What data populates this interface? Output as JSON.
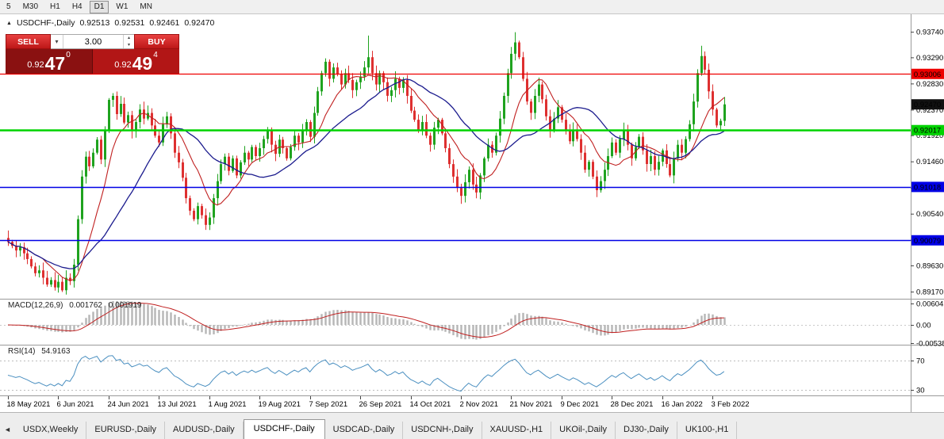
{
  "toolbar": {
    "periods": [
      "5",
      "M30",
      "H1",
      "H4",
      "D1",
      "W1",
      "MN"
    ],
    "active_period": "D1"
  },
  "chart": {
    "marker_icon": "▲",
    "symbol_title": "USDCHF-,Daily",
    "ohlc": {
      "open": "0.92513",
      "high": "0.92531",
      "low": "0.92461",
      "close": "0.92470"
    }
  },
  "trade": {
    "sell_label": "SELL",
    "buy_label": "BUY",
    "volume": "3.00",
    "volume_dropdown_icon": "▾",
    "spin_up_icon": "▴",
    "spin_down_icon": "▾",
    "sell_price": {
      "base": "0.92",
      "big": "47",
      "sup": "0"
    },
    "buy_price": {
      "base": "0.92",
      "big": "49",
      "sup": "4"
    }
  },
  "chart_data": {
    "type": "candlestick",
    "title": "USDCHF-,Daily",
    "first_open": 0.9012,
    "candles_per_tick": 13,
    "x_axis_dates": [
      "18 May 2021",
      "6 Jun 2021",
      "24 Jun 2021",
      "13 Jul 2021",
      "1 Aug 2021",
      "19 Aug 2021",
      "7 Sep 2021",
      "26 Sep 2021",
      "14 Oct 2021",
      "2 Nov 2021",
      "21 Nov 2021",
      "9 Dec 2021",
      "28 Dec 2021",
      "16 Jan 2022",
      "3 Feb 2022"
    ],
    "price_ticks": [
      "0.93740",
      "0.93290",
      "0.92830",
      "0.92370",
      "0.91920",
      "0.91460",
      "0.91000",
      "0.90540",
      "0.90080",
      "0.89630",
      "0.89170"
    ],
    "hlines": [
      {
        "price": 0.93006,
        "label": "0.93006",
        "color": "#ee0000",
        "width": 1.2
      },
      {
        "price": 0.92017,
        "label": "0.92017",
        "color": "#00d300",
        "width": 2.5
      },
      {
        "price": 0.91018,
        "label": "0.91018",
        "color": "#0000e6",
        "width": 1.5
      },
      {
        "price": 0.90079,
        "label": "0.90079",
        "color": "#0000e6",
        "width": 1.5
      }
    ],
    "current_price": {
      "value": 0.9247,
      "label": "0.92470",
      "color": "#111111"
    },
    "closes": [
      0.9005,
      0.8998,
      0.899,
      0.8996,
      0.8985,
      0.8975,
      0.8962,
      0.895,
      0.8955,
      0.8942,
      0.893,
      0.8938,
      0.8925,
      0.8935,
      0.892,
      0.8942,
      0.8936,
      0.8965,
      0.9045,
      0.912,
      0.9155,
      0.9138,
      0.9162,
      0.9185,
      0.915,
      0.92,
      0.9255,
      0.9262,
      0.923,
      0.9248,
      0.9215,
      0.9228,
      0.92,
      0.9216,
      0.9238,
      0.9222,
      0.9232,
      0.921,
      0.9192,
      0.918,
      0.9212,
      0.9226,
      0.9196,
      0.9162,
      0.9145,
      0.9118,
      0.9082,
      0.906,
      0.9045,
      0.9068,
      0.9052,
      0.9035,
      0.9048,
      0.9082,
      0.9112,
      0.9142,
      0.9155,
      0.913,
      0.9152,
      0.9122,
      0.9145,
      0.9162,
      0.915,
      0.9172,
      0.9156,
      0.917,
      0.9186,
      0.92,
      0.9176,
      0.916,
      0.9185,
      0.917,
      0.9152,
      0.9172,
      0.9192,
      0.918,
      0.9202,
      0.9216,
      0.919,
      0.9232,
      0.927,
      0.9302,
      0.9322,
      0.9292,
      0.9312,
      0.93,
      0.9282,
      0.9302,
      0.929,
      0.9272,
      0.9286,
      0.9296,
      0.9312,
      0.933,
      0.9302,
      0.9282,
      0.9302,
      0.9286,
      0.9262,
      0.9272,
      0.9292,
      0.9276,
      0.929,
      0.9262,
      0.9236,
      0.922,
      0.9202,
      0.9216,
      0.9192,
      0.9176,
      0.9206,
      0.922,
      0.9196,
      0.917,
      0.9142,
      0.912,
      0.91,
      0.9086,
      0.911,
      0.9132,
      0.9106,
      0.9092,
      0.9122,
      0.9152,
      0.9176,
      0.9162,
      0.9192,
      0.9222,
      0.9262,
      0.9302,
      0.9336,
      0.9356,
      0.933,
      0.9292,
      0.9252,
      0.9232,
      0.9262,
      0.9282,
      0.9256,
      0.9226,
      0.9202,
      0.9222,
      0.9242,
      0.922,
      0.92,
      0.9182,
      0.9202,
      0.9186,
      0.9162,
      0.9132,
      0.9146,
      0.912,
      0.9096,
      0.9112,
      0.9132,
      0.9156,
      0.918,
      0.9162,
      0.9186,
      0.9202,
      0.9176,
      0.9152,
      0.9172,
      0.919,
      0.9166,
      0.9142,
      0.9156,
      0.9132,
      0.9146,
      0.9166,
      0.9142,
      0.9122,
      0.9152,
      0.9176,
      0.9162,
      0.9186,
      0.9212,
      0.9252,
      0.9302,
      0.9332,
      0.9308,
      0.927,
      0.9238,
      0.921,
      0.9218,
      0.9247
    ],
    "wick_overrides": {
      "14": {
        "low": 0.8917
      },
      "93": {
        "high": 0.9368
      },
      "131": {
        "high": 0.9374
      },
      "179": {
        "high": 0.935
      }
    },
    "ma_fast_period": 10,
    "ma_slow_period": 24,
    "macd": {
      "label": "MACD(12,26,9)",
      "value_main": "0.001762",
      "value_signal": "0.001919",
      "axis_max": "0.006045",
      "axis_zero": "0.00",
      "axis_min": "-0.00538",
      "fast": 12,
      "slow": 26,
      "signal": 9
    },
    "rsi": {
      "label": "RSI(14)",
      "value": "54.9163",
      "period": 14,
      "level_high": "70",
      "level_low": "30"
    },
    "colors": {
      "up": "#1fa31f",
      "down": "#de3030",
      "ma_fast": "#c02020",
      "ma_slow": "#1c1c8e",
      "macd_hist": "#b6b6b6",
      "macd_signal": "#c02020",
      "rsi_line": "#4a8fc0"
    }
  },
  "tabs": {
    "scroll_left_icon": "◄",
    "items": [
      "USDX,Weekly",
      "EURUSD-,Daily",
      "AUDUSD-,Daily",
      "USDCHF-,Daily",
      "USDCAD-,Daily",
      "USDCNH-,Daily",
      "XAUUSD-,H1",
      "UKOil-,Daily",
      "DJ30-,Daily",
      "UK100-,H1"
    ],
    "active_index": 3
  }
}
